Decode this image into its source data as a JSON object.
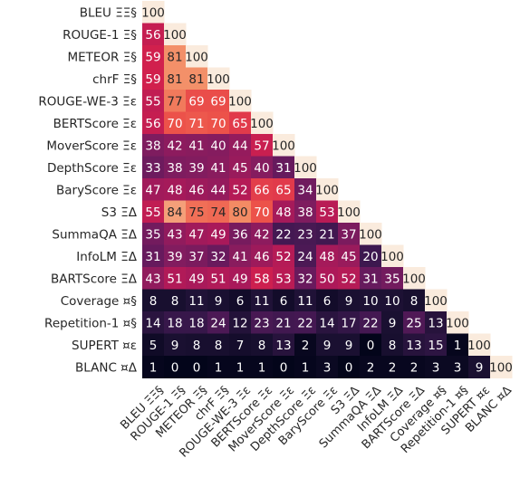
{
  "chart_data": {
    "type": "heatmap",
    "title": "",
    "xlabel": "",
    "ylabel": "",
    "value_range": [
      0,
      100
    ],
    "colormap": "rocket",
    "layout": "lower-triangular",
    "labels": [
      "BLEU ΞΞ§",
      "ROUGE-1 Ξ§",
      "METEOR Ξ§",
      "chrF Ξ§",
      "ROUGE-WE-3 Ξε",
      "BERTScore Ξε",
      "MoverScore Ξε",
      "DepthScore Ξε",
      "BaryScore Ξε",
      "S3 ΞΔ",
      "SummaQA ΞΔ",
      "InfoLM ΞΔ",
      "BARTScore ΞΔ",
      "Coverage ¤§",
      "Repetition-1 ¤§",
      "SUPERT ¤ε",
      "BLANC ¤Δ"
    ],
    "values": [
      [
        100
      ],
      [
        56,
        100
      ],
      [
        59,
        81,
        100
      ],
      [
        59,
        81,
        81,
        100
      ],
      [
        55,
        77,
        69,
        69,
        100
      ],
      [
        56,
        70,
        71,
        70,
        65,
        100
      ],
      [
        38,
        42,
        41,
        40,
        44,
        57,
        100
      ],
      [
        33,
        38,
        39,
        41,
        45,
        40,
        31,
        100
      ],
      [
        47,
        48,
        46,
        44,
        52,
        66,
        65,
        34,
        100
      ],
      [
        55,
        84,
        75,
        74,
        80,
        70,
        48,
        38,
        53,
        100
      ],
      [
        35,
        43,
        47,
        49,
        36,
        42,
        22,
        23,
        21,
        37,
        100
      ],
      [
        31,
        39,
        37,
        32,
        41,
        46,
        52,
        24,
        48,
        45,
        20,
        100
      ],
      [
        43,
        51,
        49,
        51,
        49,
        58,
        53,
        32,
        50,
        52,
        31,
        35,
        100
      ],
      [
        8,
        8,
        11,
        9,
        6,
        11,
        6,
        11,
        6,
        9,
        10,
        10,
        8,
        100
      ],
      [
        14,
        18,
        18,
        24,
        12,
        23,
        21,
        22,
        14,
        17,
        22,
        9,
        25,
        13,
        100
      ],
      [
        5,
        9,
        8,
        8,
        7,
        8,
        13,
        2,
        9,
        9,
        0,
        8,
        13,
        15,
        1,
        100
      ],
      [
        1,
        0,
        0,
        1,
        1,
        1,
        0,
        1,
        3,
        0,
        2,
        2,
        2,
        3,
        3,
        9,
        100
      ]
    ]
  }
}
